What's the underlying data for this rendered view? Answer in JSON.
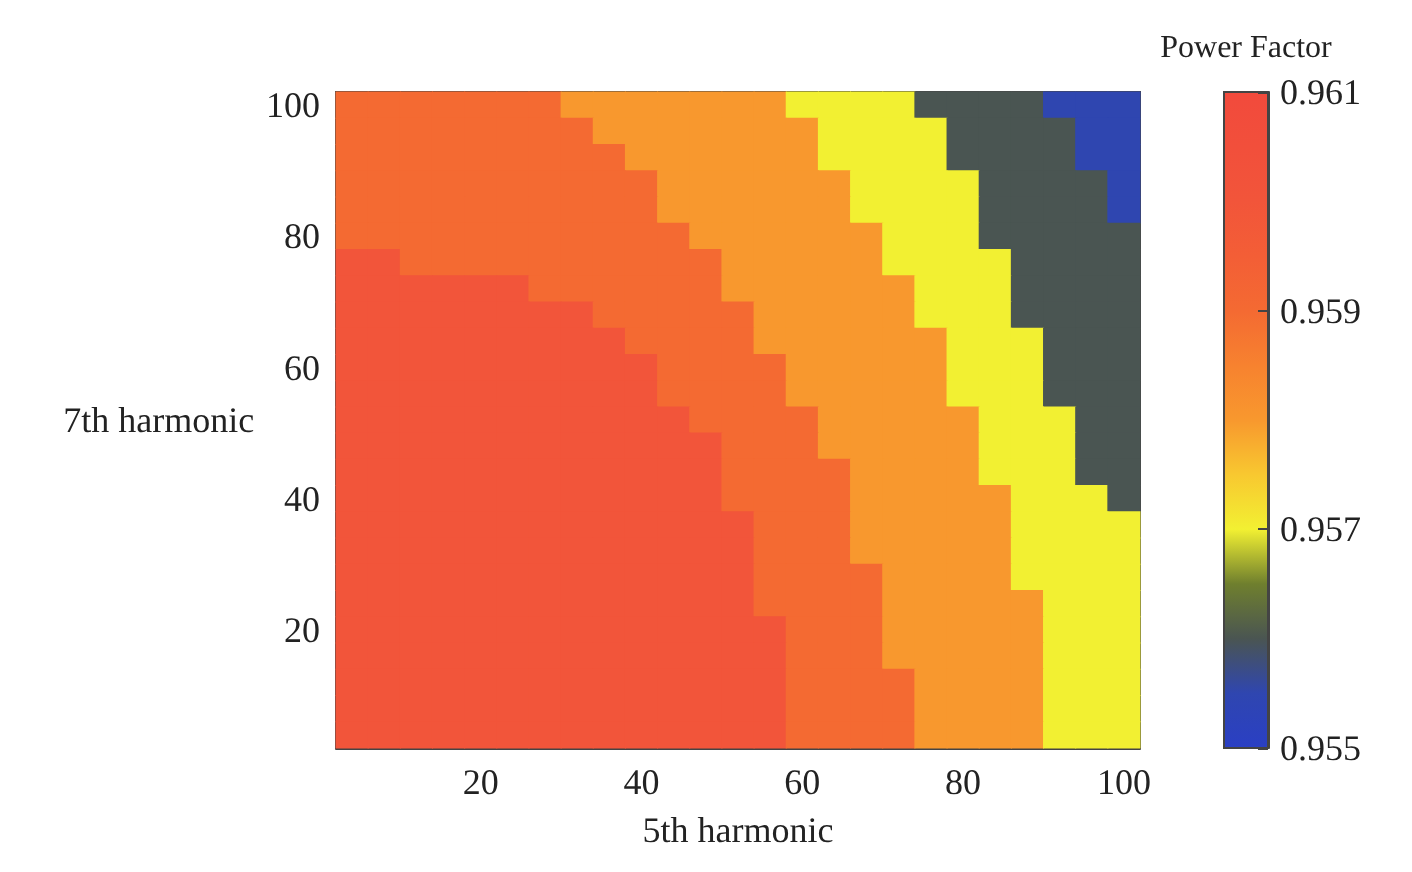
{
  "chart_data": {
    "type": "heatmap",
    "xlabel": "5th harmonic",
    "ylabel": "7th harmonic",
    "clabel": "Power Factor",
    "categories": [
      null,
      null,
      null,
      null,
      "20",
      null,
      null,
      null,
      null,
      "40",
      null,
      null,
      null,
      null,
      "60",
      null,
      null,
      null,
      null,
      "80",
      null,
      null,
      null,
      null,
      "100"
    ],
    "y_categories": [
      "100",
      null,
      null,
      null,
      null,
      "80",
      null,
      null,
      null,
      null,
      "60",
      null,
      null,
      null,
      null,
      "40",
      null,
      null,
      null,
      null,
      "20",
      null,
      null,
      null,
      null
    ],
    "cells": [
      [
        0.959,
        0.959,
        0.959,
        0.959,
        0.959,
        0.959,
        0.959,
        0.958,
        0.958,
        0.958,
        0.958,
        0.958,
        0.958,
        0.958,
        0.957,
        0.957,
        0.957,
        0.957,
        0.956,
        0.956,
        0.956,
        0.956,
        0.9555,
        0.9555,
        0.9555
      ],
      [
        0.959,
        0.959,
        0.959,
        0.959,
        0.959,
        0.959,
        0.959,
        0.959,
        0.958,
        0.958,
        0.958,
        0.958,
        0.958,
        0.958,
        0.958,
        0.957,
        0.957,
        0.957,
        0.957,
        0.956,
        0.956,
        0.956,
        0.956,
        0.9555,
        0.9555
      ],
      [
        0.959,
        0.959,
        0.959,
        0.959,
        0.959,
        0.959,
        0.959,
        0.959,
        0.959,
        0.958,
        0.958,
        0.958,
        0.958,
        0.958,
        0.958,
        0.957,
        0.957,
        0.957,
        0.957,
        0.956,
        0.956,
        0.956,
        0.956,
        0.9555,
        0.9555
      ],
      [
        0.959,
        0.959,
        0.959,
        0.959,
        0.959,
        0.959,
        0.959,
        0.959,
        0.959,
        0.959,
        0.958,
        0.958,
        0.958,
        0.958,
        0.958,
        0.958,
        0.957,
        0.957,
        0.957,
        0.957,
        0.956,
        0.956,
        0.956,
        0.956,
        0.9555
      ],
      [
        0.959,
        0.959,
        0.959,
        0.959,
        0.959,
        0.959,
        0.959,
        0.959,
        0.959,
        0.959,
        0.958,
        0.958,
        0.958,
        0.958,
        0.958,
        0.958,
        0.957,
        0.957,
        0.957,
        0.957,
        0.956,
        0.956,
        0.956,
        0.956,
        0.9555
      ],
      [
        0.959,
        0.959,
        0.959,
        0.959,
        0.959,
        0.959,
        0.959,
        0.959,
        0.959,
        0.959,
        0.959,
        0.958,
        0.958,
        0.958,
        0.958,
        0.958,
        0.958,
        0.957,
        0.957,
        0.957,
        0.956,
        0.956,
        0.956,
        0.956,
        0.956
      ],
      [
        0.96,
        0.96,
        0.959,
        0.959,
        0.959,
        0.959,
        0.959,
        0.959,
        0.959,
        0.959,
        0.959,
        0.959,
        0.958,
        0.958,
        0.958,
        0.958,
        0.958,
        0.957,
        0.957,
        0.957,
        0.957,
        0.956,
        0.956,
        0.956,
        0.956
      ],
      [
        0.96,
        0.96,
        0.96,
        0.96,
        0.96,
        0.96,
        0.959,
        0.959,
        0.959,
        0.959,
        0.959,
        0.959,
        0.958,
        0.958,
        0.958,
        0.958,
        0.958,
        0.958,
        0.957,
        0.957,
        0.957,
        0.956,
        0.956,
        0.956,
        0.956
      ],
      [
        0.96,
        0.96,
        0.96,
        0.96,
        0.96,
        0.96,
        0.96,
        0.96,
        0.959,
        0.959,
        0.959,
        0.959,
        0.959,
        0.958,
        0.958,
        0.958,
        0.958,
        0.958,
        0.957,
        0.957,
        0.957,
        0.956,
        0.956,
        0.956,
        0.956
      ],
      [
        0.96,
        0.96,
        0.96,
        0.96,
        0.96,
        0.96,
        0.96,
        0.96,
        0.96,
        0.959,
        0.959,
        0.959,
        0.959,
        0.958,
        0.958,
        0.958,
        0.958,
        0.958,
        0.958,
        0.957,
        0.957,
        0.957,
        0.956,
        0.956,
        0.956
      ],
      [
        0.96,
        0.96,
        0.96,
        0.96,
        0.96,
        0.96,
        0.96,
        0.96,
        0.96,
        0.96,
        0.959,
        0.959,
        0.959,
        0.959,
        0.958,
        0.958,
        0.958,
        0.958,
        0.958,
        0.957,
        0.957,
        0.957,
        0.956,
        0.956,
        0.956
      ],
      [
        0.96,
        0.96,
        0.96,
        0.96,
        0.96,
        0.96,
        0.96,
        0.96,
        0.96,
        0.96,
        0.959,
        0.959,
        0.959,
        0.959,
        0.958,
        0.958,
        0.958,
        0.958,
        0.958,
        0.957,
        0.957,
        0.957,
        0.956,
        0.956,
        0.956
      ],
      [
        0.96,
        0.96,
        0.96,
        0.96,
        0.96,
        0.96,
        0.96,
        0.96,
        0.96,
        0.96,
        0.96,
        0.959,
        0.959,
        0.959,
        0.959,
        0.958,
        0.958,
        0.958,
        0.958,
        0.958,
        0.957,
        0.957,
        0.957,
        0.956,
        0.956
      ],
      [
        0.96,
        0.96,
        0.96,
        0.96,
        0.96,
        0.96,
        0.96,
        0.96,
        0.96,
        0.96,
        0.96,
        0.96,
        0.959,
        0.959,
        0.959,
        0.958,
        0.958,
        0.958,
        0.958,
        0.958,
        0.957,
        0.957,
        0.957,
        0.956,
        0.956
      ],
      [
        0.96,
        0.96,
        0.96,
        0.96,
        0.96,
        0.96,
        0.96,
        0.96,
        0.96,
        0.96,
        0.96,
        0.96,
        0.959,
        0.959,
        0.959,
        0.959,
        0.958,
        0.958,
        0.958,
        0.958,
        0.957,
        0.957,
        0.957,
        0.956,
        0.956
      ],
      [
        0.96,
        0.96,
        0.96,
        0.96,
        0.96,
        0.96,
        0.96,
        0.96,
        0.96,
        0.96,
        0.96,
        0.96,
        0.959,
        0.959,
        0.959,
        0.959,
        0.958,
        0.958,
        0.958,
        0.958,
        0.958,
        0.957,
        0.957,
        0.957,
        0.956
      ],
      [
        0.96,
        0.96,
        0.96,
        0.96,
        0.96,
        0.96,
        0.96,
        0.96,
        0.96,
        0.96,
        0.96,
        0.96,
        0.96,
        0.959,
        0.959,
        0.959,
        0.958,
        0.958,
        0.958,
        0.958,
        0.958,
        0.957,
        0.957,
        0.957,
        0.957
      ],
      [
        0.96,
        0.96,
        0.96,
        0.96,
        0.96,
        0.96,
        0.96,
        0.96,
        0.96,
        0.96,
        0.96,
        0.96,
        0.96,
        0.959,
        0.959,
        0.959,
        0.958,
        0.958,
        0.958,
        0.958,
        0.958,
        0.957,
        0.957,
        0.957,
        0.957
      ],
      [
        0.96,
        0.96,
        0.96,
        0.96,
        0.96,
        0.96,
        0.96,
        0.96,
        0.96,
        0.96,
        0.96,
        0.96,
        0.96,
        0.959,
        0.959,
        0.959,
        0.959,
        0.958,
        0.958,
        0.958,
        0.958,
        0.957,
        0.957,
        0.957,
        0.957
      ],
      [
        0.96,
        0.96,
        0.96,
        0.96,
        0.96,
        0.96,
        0.96,
        0.96,
        0.96,
        0.96,
        0.96,
        0.96,
        0.96,
        0.959,
        0.959,
        0.959,
        0.959,
        0.958,
        0.958,
        0.958,
        0.958,
        0.958,
        0.957,
        0.957,
        0.957
      ],
      [
        0.96,
        0.96,
        0.96,
        0.96,
        0.96,
        0.96,
        0.96,
        0.96,
        0.96,
        0.96,
        0.96,
        0.96,
        0.96,
        0.96,
        0.959,
        0.959,
        0.959,
        0.958,
        0.958,
        0.958,
        0.958,
        0.958,
        0.957,
        0.957,
        0.957
      ],
      [
        0.96,
        0.96,
        0.96,
        0.96,
        0.96,
        0.96,
        0.96,
        0.96,
        0.96,
        0.96,
        0.96,
        0.96,
        0.96,
        0.96,
        0.959,
        0.959,
        0.959,
        0.958,
        0.958,
        0.958,
        0.958,
        0.958,
        0.957,
        0.957,
        0.957
      ],
      [
        0.96,
        0.96,
        0.96,
        0.96,
        0.96,
        0.96,
        0.96,
        0.96,
        0.96,
        0.96,
        0.96,
        0.96,
        0.96,
        0.96,
        0.959,
        0.959,
        0.959,
        0.959,
        0.958,
        0.958,
        0.958,
        0.958,
        0.957,
        0.957,
        0.957
      ],
      [
        0.96,
        0.96,
        0.96,
        0.96,
        0.96,
        0.96,
        0.96,
        0.96,
        0.96,
        0.96,
        0.96,
        0.96,
        0.96,
        0.96,
        0.959,
        0.959,
        0.959,
        0.959,
        0.958,
        0.958,
        0.958,
        0.958,
        0.957,
        0.957,
        0.957
      ],
      [
        0.96,
        0.96,
        0.96,
        0.96,
        0.96,
        0.96,
        0.96,
        0.96,
        0.96,
        0.96,
        0.96,
        0.96,
        0.96,
        0.96,
        0.959,
        0.959,
        0.959,
        0.959,
        0.958,
        0.958,
        0.958,
        0.958,
        0.957,
        0.957,
        0.957
      ]
    ],
    "clim": [
      0.955,
      0.961
    ],
    "cticks": [
      0.955,
      0.957,
      0.959,
      0.961
    ]
  }
}
